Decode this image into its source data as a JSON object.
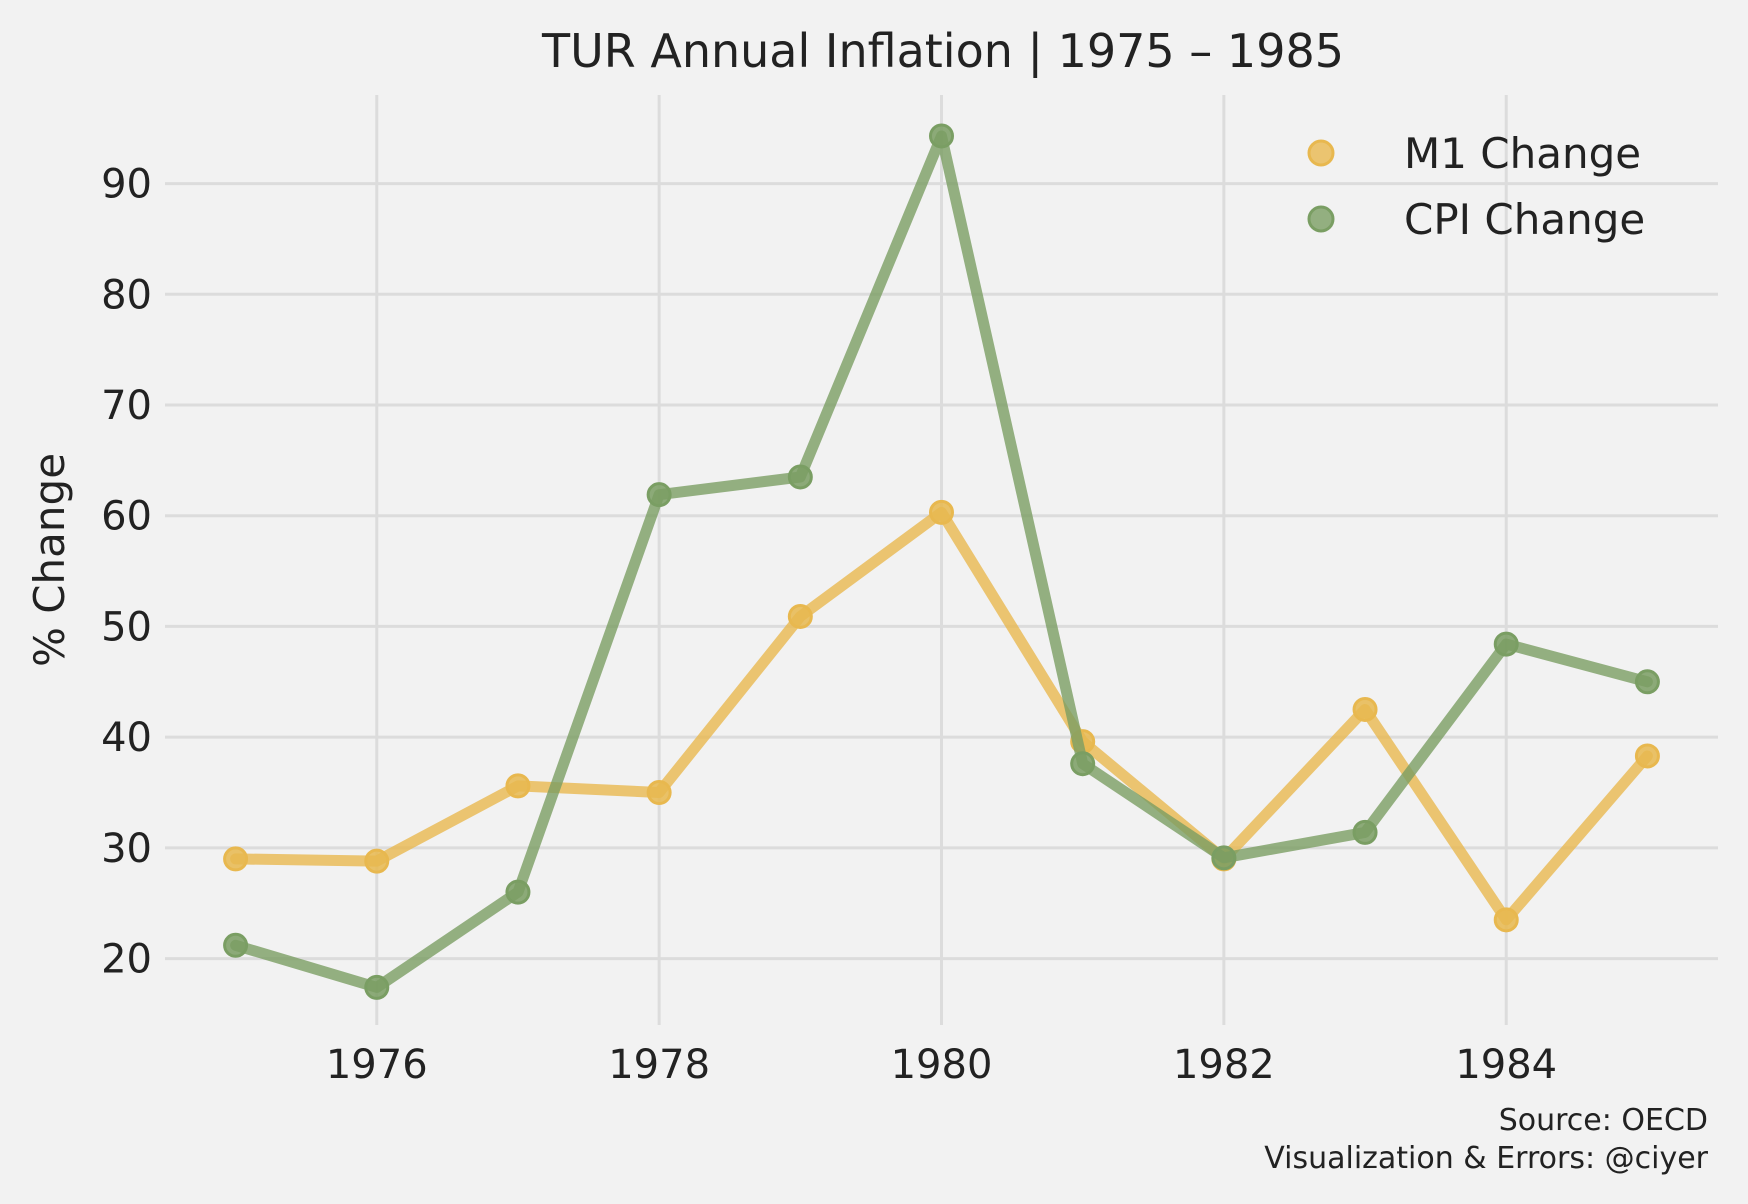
{
  "chart_data": {
    "type": "line",
    "title": "TUR Annual Inflation | 1975 – 1985",
    "xlabel": "",
    "ylabel": "% Change",
    "x": [
      1975,
      1976,
      1977,
      1978,
      1979,
      1980,
      1981,
      1982,
      1983,
      1984,
      1985
    ],
    "xlim": [
      1974.5,
      1985.5
    ],
    "ylim": [
      14,
      98
    ],
    "xticks": [
      1976,
      1978,
      1980,
      1982,
      1984
    ],
    "yticks": [
      20,
      30,
      40,
      50,
      60,
      70,
      80,
      90
    ],
    "grid": true,
    "legend_position": "top-right",
    "series": [
      {
        "name": "M1 Change",
        "color": "#e8b84f",
        "values": [
          29.0,
          28.8,
          35.6,
          35.0,
          50.9,
          60.3,
          39.6,
          29.0,
          42.5,
          23.5,
          38.3
        ]
      },
      {
        "name": "CPI Change",
        "color": "#7a9e63",
        "values": [
          21.2,
          17.4,
          26.0,
          61.9,
          63.5,
          94.3,
          37.6,
          29.1,
          31.4,
          48.4,
          45.0
        ]
      }
    ]
  },
  "source": {
    "line1": "Source: OECD",
    "line2": "Visualization & Errors: @ciyer"
  }
}
